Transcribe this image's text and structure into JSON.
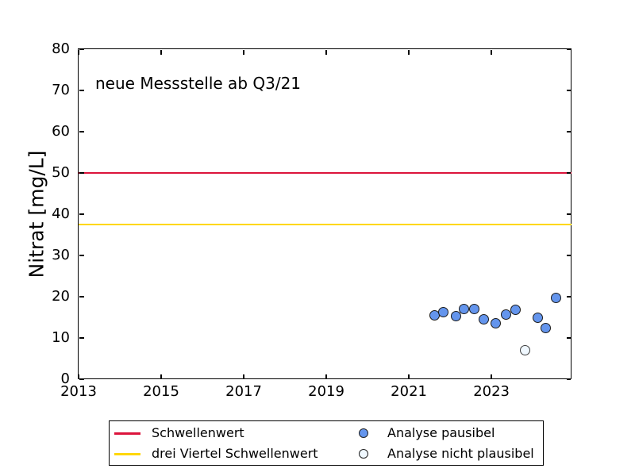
{
  "chart_data": {
    "type": "scatter",
    "annotation": "neue Messstelle ab Q3/21",
    "xlabel": "",
    "ylabel": "Nitrat [mg/L]",
    "xlim": [
      2013,
      2024.94
    ],
    "ylim": [
      0,
      80
    ],
    "x_ticks": [
      2013,
      2015,
      2017,
      2019,
      2021,
      2023
    ],
    "y_ticks": [
      0,
      10,
      20,
      30,
      40,
      50,
      60,
      70,
      80
    ],
    "grid": false,
    "tick_direction": "in",
    "hlines": [
      {
        "label": "Schwellenwert",
        "value": 50,
        "color": "#dc143c"
      },
      {
        "label": "drei Viertel Schwellenwert",
        "value": 37.5,
        "color": "#ffd700"
      }
    ],
    "series": [
      {
        "name": "Analyse pausibel",
        "marker": "filled-circle",
        "fill": "#6495ed",
        "edge": "#1a1a1a",
        "points": [
          {
            "quarter": "Q3/21",
            "x": 2021.64,
            "y": 15.3
          },
          {
            "quarter": "Q4/21",
            "x": 2021.85,
            "y": 16.1
          },
          {
            "quarter": "Q1/22",
            "x": 2022.15,
            "y": 15.2
          },
          {
            "quarter": "Q2/22",
            "x": 2022.35,
            "y": 17.0
          },
          {
            "quarter": "Q3/22",
            "x": 2022.6,
            "y": 16.9
          },
          {
            "quarter": "Q4/22",
            "x": 2022.82,
            "y": 14.5
          },
          {
            "quarter": "Q1/23",
            "x": 2023.12,
            "y": 13.5
          },
          {
            "quarter": "Q2/23",
            "x": 2023.36,
            "y": 15.6
          },
          {
            "quarter": "Q3/23",
            "x": 2023.6,
            "y": 16.7
          },
          {
            "quarter": "Q1/24",
            "x": 2024.14,
            "y": 14.9
          },
          {
            "quarter": "Q2/24",
            "x": 2024.33,
            "y": 12.3
          },
          {
            "quarter": "Q3/24",
            "x": 2024.57,
            "y": 19.6
          }
        ]
      },
      {
        "name": "Analyse nicht plausibel",
        "marker": "open-circle",
        "fill": "#f0f8ff",
        "edge": "#3d3d3d",
        "points": [
          {
            "quarter": "Q4/23",
            "x": 2023.82,
            "y": 7.0
          }
        ]
      }
    ],
    "legend_position": "below-axes"
  },
  "legend": {
    "items": [
      {
        "label": "Schwellenwert",
        "swatch": "line",
        "color": "#dc143c"
      },
      {
        "label": "drei Viertel Schwellenwert",
        "swatch": "line",
        "color": "#ffd700"
      },
      {
        "label": "Analyse pausibel",
        "swatch": "filled-circle",
        "color": "#6495ed"
      },
      {
        "label": "Analyse nicht plausibel",
        "swatch": "open-circle",
        "color": "#f0f8ff"
      }
    ]
  }
}
